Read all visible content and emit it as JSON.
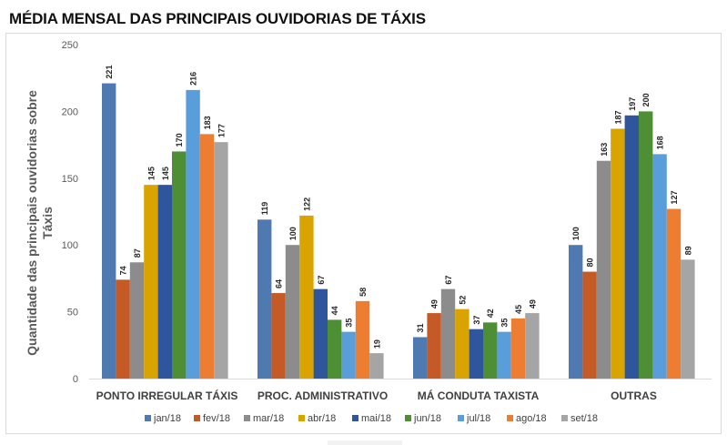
{
  "chart_data": {
    "type": "bar",
    "title": "MÉDIA MENSAL DAS PRINCIPAIS OUVIDORIAS DE TÁXIS",
    "xlabel": "",
    "ylabel_line1": "Quantidade das principais ouvidorias sobre",
    "ylabel_line2": "Táxis",
    "ylim": [
      0,
      250
    ],
    "yticks": [
      0,
      50,
      100,
      150,
      200,
      250
    ],
    "grid": false,
    "legend_position": "bottom",
    "categories": [
      "PONTO IRREGULAR TÁXIS",
      "PROC. ADMINISTRATIVO",
      "MÁ CONDUTA TAXISTA",
      "OUTRAS"
    ],
    "series": [
      {
        "name": "jan/18",
        "color": "#4e7ab1",
        "values": [
          221,
          119,
          31,
          100
        ]
      },
      {
        "name": "fev/18",
        "color": "#c55a26",
        "values": [
          74,
          64,
          49,
          80
        ]
      },
      {
        "name": "mar/18",
        "color": "#8c8c8c",
        "values": [
          87,
          100,
          67,
          163
        ]
      },
      {
        "name": "abr/18",
        "color": "#d9a300",
        "values": [
          145,
          122,
          52,
          187
        ]
      },
      {
        "name": "mai/18",
        "color": "#2f559c",
        "values": [
          145,
          67,
          37,
          197
        ]
      },
      {
        "name": "jun/18",
        "color": "#4e8f36",
        "values": [
          170,
          44,
          42,
          200
        ]
      },
      {
        "name": "jul/18",
        "color": "#5a9ddb",
        "values": [
          216,
          35,
          35,
          168
        ]
      },
      {
        "name": "ago/18",
        "color": "#ed7d31",
        "values": [
          183,
          58,
          45,
          127
        ]
      },
      {
        "name": "set/18",
        "color": "#a5a5a5",
        "values": [
          177,
          19,
          49,
          89
        ]
      }
    ]
  }
}
